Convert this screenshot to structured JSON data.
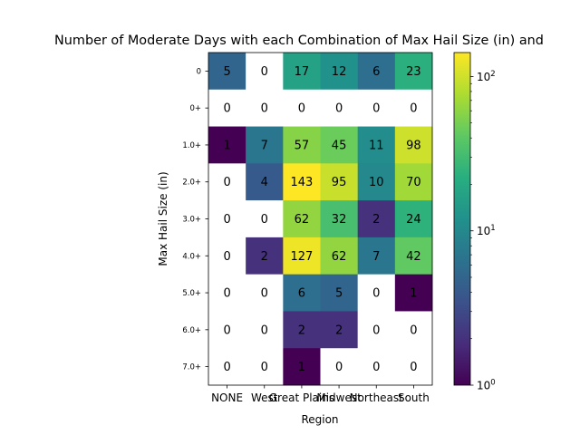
{
  "chart_data": {
    "type": "heatmap",
    "title": "Number of Moderate Days with each Combination of Max Hail Size (in) and",
    "xlabel": "Region",
    "ylabel": "Max Hail Size (in)",
    "x_categories": [
      "NONE",
      "West",
      "Great Plains",
      "Midwest",
      "Northeast",
      "South"
    ],
    "y_categories": [
      "0",
      "0+",
      "1.0+",
      "2.0+",
      "3.0+",
      "4.0+",
      "5.0+",
      "6.0+",
      "7.0+"
    ],
    "values": [
      [
        5,
        0,
        17,
        12,
        6,
        23
      ],
      [
        0,
        0,
        0,
        0,
        0,
        0
      ],
      [
        1,
        7,
        57,
        45,
        11,
        98
      ],
      [
        0,
        4,
        143,
        95,
        10,
        70
      ],
      [
        0,
        0,
        62,
        32,
        2,
        24
      ],
      [
        0,
        2,
        127,
        62,
        7,
        42
      ],
      [
        0,
        0,
        6,
        5,
        0,
        1
      ],
      [
        0,
        0,
        2,
        2,
        0,
        0
      ],
      [
        0,
        0,
        1,
        0,
        0,
        0
      ]
    ],
    "color_scale": "log",
    "colormap": "viridis",
    "clim": [
      1,
      143
    ],
    "zero_color": "#ffffff",
    "colorbar_ticks": [
      {
        "value": 1,
        "label": "10^0"
      },
      {
        "value": 10,
        "label": "10^1"
      },
      {
        "value": 100,
        "label": "10^2"
      }
    ],
    "legend": "colorbar-right",
    "grid": false
  }
}
